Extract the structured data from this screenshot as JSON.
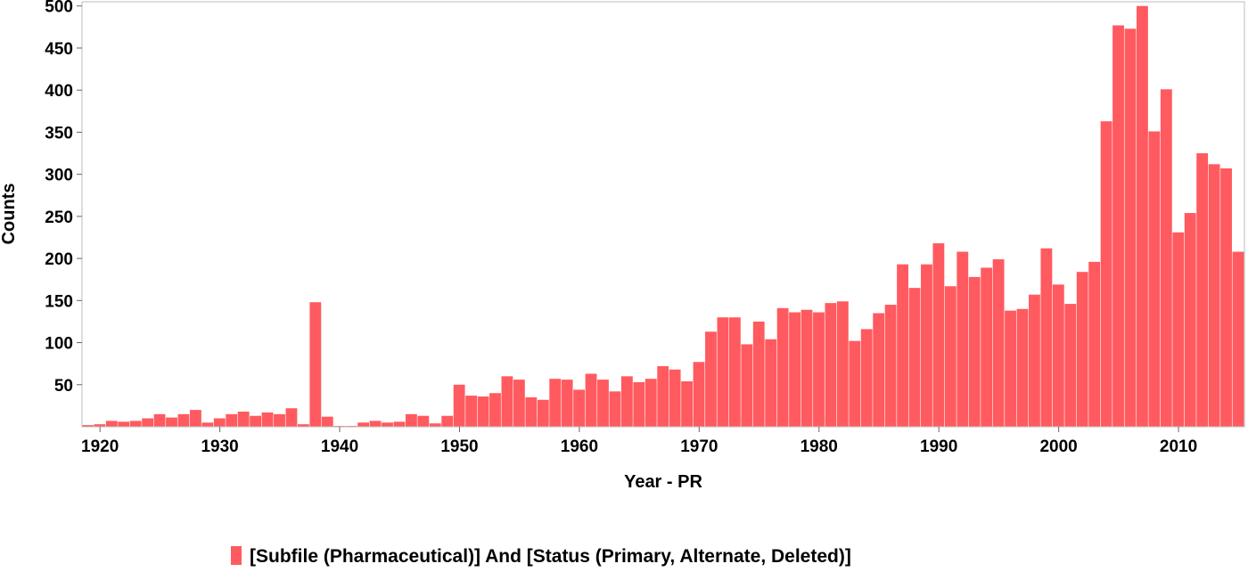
{
  "chart_data": {
    "type": "bar",
    "xlabel": "Year - PR",
    "ylabel": "Counts",
    "ylim": [
      0,
      505
    ],
    "xlim": [
      1918.5,
      2015.5
    ],
    "grid": false,
    "legend_position": "bottom",
    "bar_color": "#ff5a5f",
    "x_ticks": [
      1920,
      1930,
      1940,
      1950,
      1960,
      1970,
      1980,
      1990,
      2000,
      2010
    ],
    "y_ticks": [
      50,
      100,
      150,
      200,
      250,
      300,
      350,
      400,
      450,
      500
    ],
    "series": [
      {
        "name": "[Subfile (Pharmaceutical)] And [Status (Primary, Alternate, Deleted)]",
        "x": [
          1919,
          1920,
          1921,
          1922,
          1923,
          1924,
          1925,
          1926,
          1927,
          1928,
          1929,
          1930,
          1931,
          1932,
          1933,
          1934,
          1935,
          1936,
          1937,
          1938,
          1939,
          1940,
          1941,
          1942,
          1943,
          1944,
          1945,
          1946,
          1947,
          1948,
          1949,
          1950,
          1951,
          1952,
          1953,
          1954,
          1955,
          1956,
          1957,
          1958,
          1959,
          1960,
          1961,
          1962,
          1963,
          1964,
          1965,
          1966,
          1967,
          1968,
          1969,
          1970,
          1971,
          1972,
          1973,
          1974,
          1975,
          1976,
          1977,
          1978,
          1979,
          1980,
          1981,
          1982,
          1983,
          1984,
          1985,
          1986,
          1987,
          1988,
          1989,
          1990,
          1991,
          1992,
          1993,
          1994,
          1995,
          1996,
          1997,
          1998,
          1999,
          2000,
          2001,
          2002,
          2003,
          2004,
          2005,
          2006,
          2007,
          2008,
          2009,
          2010,
          2011,
          2012,
          2013,
          2014,
          2015
        ],
        "values": [
          2,
          3,
          7,
          6,
          7,
          10,
          15,
          11,
          15,
          20,
          5,
          10,
          15,
          18,
          13,
          17,
          15,
          22,
          3,
          148,
          12,
          1,
          1,
          5,
          7,
          5,
          6,
          15,
          13,
          4,
          13,
          50,
          37,
          36,
          40,
          60,
          56,
          35,
          32,
          57,
          56,
          44,
          63,
          56,
          42,
          60,
          53,
          57,
          72,
          68,
          54,
          77,
          113,
          130,
          130,
          98,
          125,
          104,
          141,
          136,
          139,
          136,
          147,
          149,
          102,
          116,
          135,
          145,
          193,
          165,
          193,
          218,
          167,
          208,
          178,
          189,
          199,
          138,
          140,
          157,
          212,
          169,
          146,
          184,
          196,
          363,
          477,
          473,
          500,
          351,
          401,
          231,
          254,
          325,
          312,
          307,
          208
        ]
      }
    ]
  }
}
